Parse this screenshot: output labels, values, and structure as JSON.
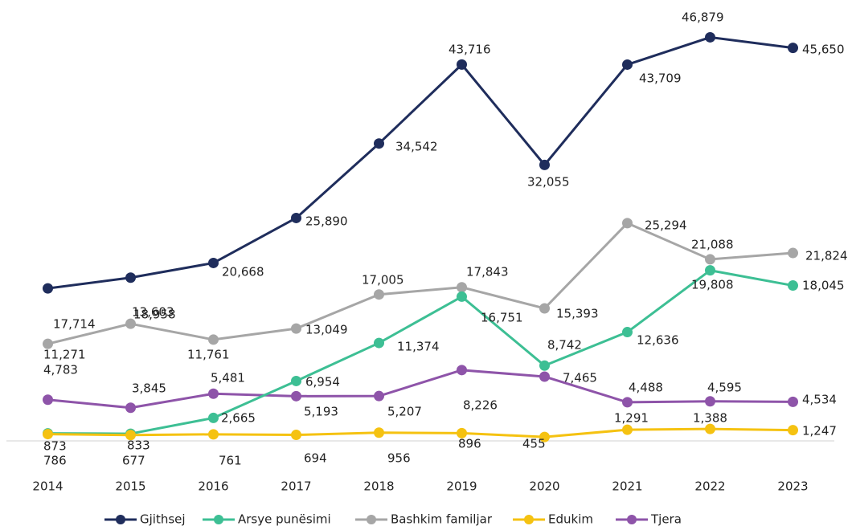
{
  "chart_data": {
    "type": "line",
    "categories": [
      "2014",
      "2015",
      "2016",
      "2017",
      "2018",
      "2019",
      "2020",
      "2021",
      "2022",
      "2023"
    ],
    "ylim": [
      0,
      50000
    ],
    "legend": "bottom",
    "series": [
      {
        "name": "Gjithsej",
        "color": "#1f2d5c",
        "values": [
          17714,
          18958,
          20668,
          25890,
          34542,
          43716,
          32055,
          43709,
          46879,
          45650
        ],
        "value_labels": [
          "17,714",
          "18,958",
          "20,668",
          "25,890",
          "34,542",
          "43,716",
          "32,055",
          "43,709",
          "46,879",
          "45,650"
        ]
      },
      {
        "name": "Arsye punësimi",
        "color": "#3dbf94",
        "values": [
          873,
          833,
          2665,
          6954,
          11374,
          16751,
          8742,
          12636,
          19808,
          18045
        ],
        "value_labels": [
          "873",
          "833",
          "2,665",
          "6,954",
          "11,374",
          "16,751",
          "8,742",
          "12,636",
          "19,808",
          "18,045"
        ]
      },
      {
        "name": "Bashkim familjar",
        "color": "#a6a6a6",
        "values": [
          11271,
          13603,
          11761,
          13049,
          17005,
          17843,
          15393,
          25294,
          21088,
          21824
        ],
        "value_labels": [
          "11,271",
          "13,603",
          "11,761",
          "13,049",
          "17,005",
          "17,843",
          "15,393",
          "25,294",
          "21,088",
          "21,824"
        ]
      },
      {
        "name": "Edukim",
        "color": "#f5c211",
        "values": [
          786,
          677,
          761,
          694,
          956,
          896,
          455,
          1291,
          1388,
          1247
        ],
        "value_labels": [
          "786",
          "677",
          "761",
          "694",
          "956",
          "896",
          "455",
          "1,291",
          "1,388",
          "1,247"
        ]
      },
      {
        "name": "Tjera",
        "color": "#8e54a9",
        "values": [
          4783,
          3845,
          5481,
          5193,
          5207,
          8226,
          7465,
          4488,
          4595,
          4534
        ],
        "value_labels": [
          "4,783",
          "3,845",
          "5,481",
          "5,193",
          "5,207",
          "8,226",
          "7,465",
          "4,488",
          "4,595",
          "4,534"
        ]
      }
    ]
  }
}
